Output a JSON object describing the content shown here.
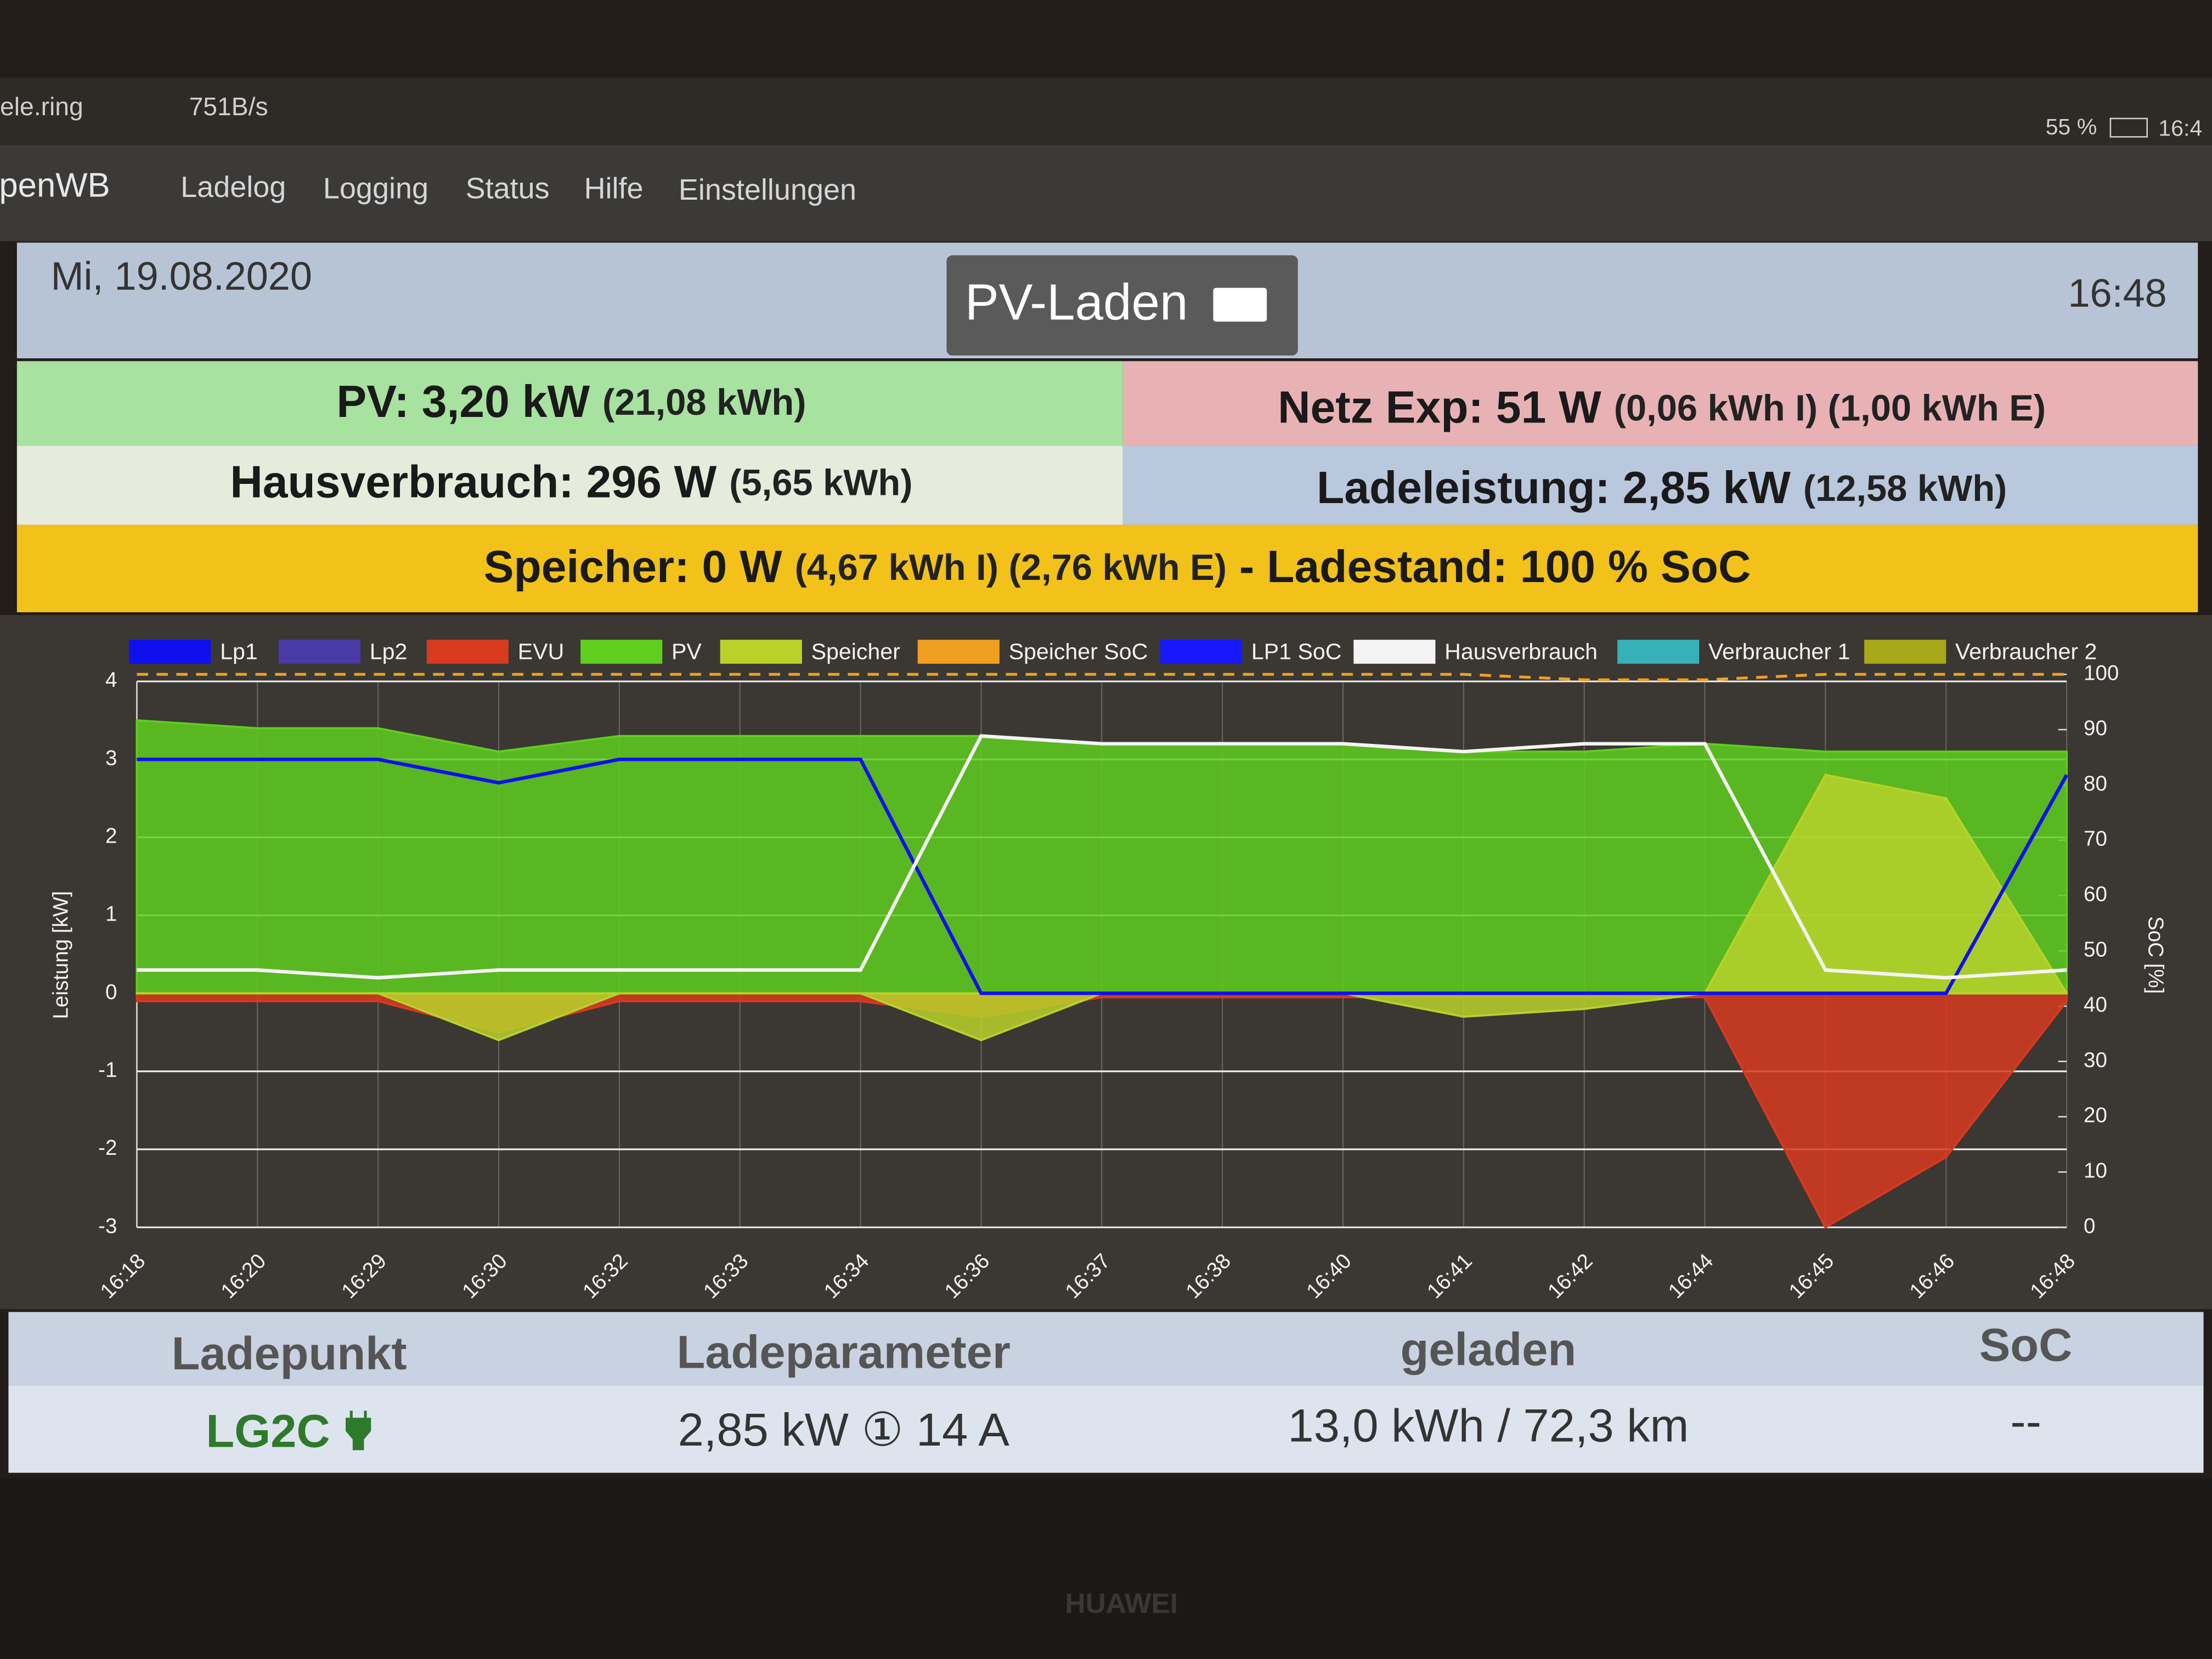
{
  "status_bar": {
    "carrier": "ele.ring",
    "speed": "751B/s",
    "battery": "55 %",
    "clock": "16:4"
  },
  "nav": {
    "brand": "openWB",
    "items": [
      "Ladelog",
      "Logging",
      "Status",
      "Hilfe",
      "Einstellungen"
    ]
  },
  "header": {
    "date": "Mi, 19.08.2020",
    "mode": "PV-Laden",
    "time": "16:48"
  },
  "summary": {
    "pv": {
      "label": "PV: 3,20 kW",
      "detail": "(21,08 kWh)"
    },
    "netz": {
      "label": "Netz Exp: 51 W",
      "detail": "(0,06 kWh I) (1,00 kWh E)"
    },
    "haus": {
      "label": "Hausverbrauch: 296 W",
      "detail": "(5,65 kWh)"
    },
    "lade": {
      "label": "Ladeleistung: 2,85 kW",
      "detail": "(12,58 kWh)"
    },
    "speicher": {
      "label": "Speicher: 0 W",
      "detail": "(4,67 kWh I) (2,76 kWh E)",
      "soc": "- Ladestand: 100 % SoC"
    }
  },
  "chart_data": {
    "type": "line",
    "ylabel": "Leistung [kW]",
    "y2label": "SoC [%]",
    "categories": [
      "16:18",
      "16:20",
      "16:29",
      "16:30",
      "16:32",
      "16:33",
      "16:34",
      "16:36",
      "16:37",
      "16:38",
      "16:40",
      "16:41",
      "16:42",
      "16:44",
      "16:45",
      "16:46",
      "16:48"
    ],
    "ylim": [
      -3,
      4
    ],
    "yticks": [
      -3,
      -2,
      -1,
      0,
      1,
      2,
      3,
      4
    ],
    "y2lim": [
      0,
      100
    ],
    "y2ticks": [
      0,
      10,
      20,
      30,
      40,
      50,
      60,
      70,
      80,
      90,
      100
    ],
    "grid": true,
    "series": [
      {
        "name": "Lp1",
        "color": "#1010ee",
        "values": [
          3.0,
          3.0,
          3.0,
          2.7,
          3.0,
          3.0,
          3.0,
          0,
          0,
          0,
          0,
          0,
          0,
          0,
          0,
          0,
          2.8
        ]
      },
      {
        "name": "Lp2",
        "color": "#4a3aa8"
      },
      {
        "name": "EVU",
        "color": "#d83a20",
        "area": true,
        "values": [
          -0.1,
          -0.1,
          -0.1,
          -0.5,
          -0.1,
          -0.1,
          -0.1,
          -0.3,
          -0.05,
          -0.05,
          -0.05,
          -0.05,
          -0.05,
          -0.05,
          -3.0,
          -2.1,
          -0.1
        ]
      },
      {
        "name": "PV",
        "color": "#5fce1e",
        "area": true,
        "values": [
          3.5,
          3.4,
          3.4,
          3.1,
          3.3,
          3.3,
          3.3,
          3.3,
          3.2,
          3.2,
          3.2,
          3.1,
          3.1,
          3.2,
          3.1,
          3.1,
          3.1
        ]
      },
      {
        "name": "Speicher",
        "color": "#b8d22a",
        "area": true,
        "values": [
          0,
          0,
          0,
          -0.6,
          0,
          0,
          0,
          -0.6,
          0,
          0,
          0,
          -0.3,
          -0.2,
          0,
          2.8,
          2.5,
          0
        ]
      },
      {
        "name": "Speicher SoC",
        "color": "#f0a020",
        "dashed": true,
        "axis": "y2",
        "values": [
          100,
          100,
          100,
          100,
          100,
          100,
          100,
          100,
          100,
          100,
          100,
          100,
          99,
          99,
          100,
          100,
          100
        ]
      },
      {
        "name": "LP1 SoC",
        "color": "#1818ff"
      },
      {
        "name": "Hausverbrauch",
        "color": "#f4f4f4",
        "values": [
          0.3,
          0.3,
          0.2,
          0.3,
          0.3,
          0.3,
          0.3,
          3.3,
          3.2,
          3.2,
          3.2,
          3.1,
          3.2,
          3.2,
          0.3,
          0.2,
          0.3
        ]
      },
      {
        "name": "Verbraucher 1",
        "color": "#38b0b8"
      },
      {
        "name": "Verbraucher 2",
        "color": "#a8a818"
      }
    ]
  },
  "table": {
    "headers": [
      "Ladepunkt",
      "Ladeparameter",
      "geladen",
      "SoC"
    ],
    "rows": [
      [
        "LG2C",
        "2,85 kW ① 14 A",
        "13,0 kWh / 72,3 km",
        "--"
      ]
    ]
  },
  "device": "HUAWEI"
}
